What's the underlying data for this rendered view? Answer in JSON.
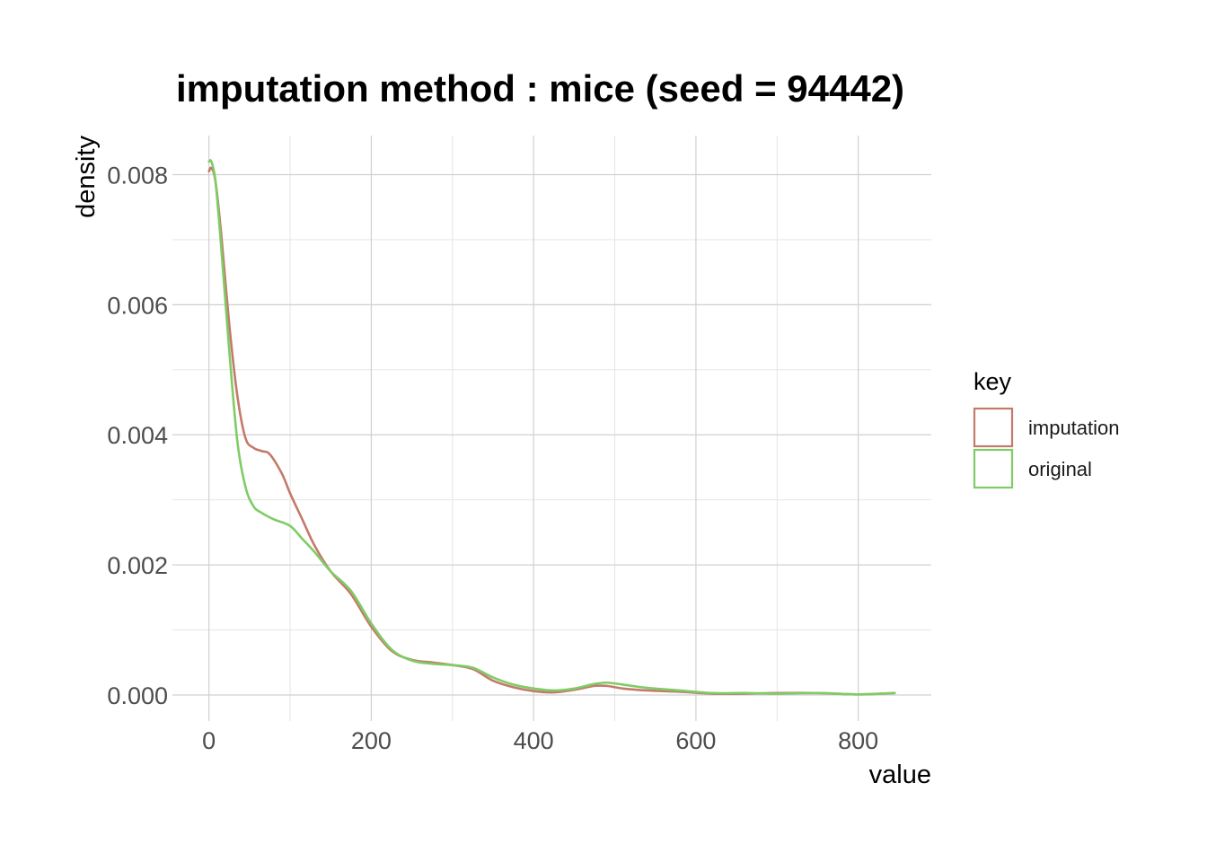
{
  "chart_data": {
    "type": "line",
    "title": "imputation method : mice (seed = 94442)",
    "xlabel": "value",
    "ylabel": "density",
    "xlim": [
      -45,
      890
    ],
    "ylim": [
      -0.0004,
      0.0086
    ],
    "x_ticks": [
      0,
      200,
      400,
      600,
      800
    ],
    "x_tick_labels": [
      "0",
      "200",
      "400",
      "600",
      "800"
    ],
    "y_ticks": [
      0,
      0.002,
      0.004,
      0.006,
      0.008
    ],
    "y_tick_labels": [
      "0.000",
      "0.002",
      "0.004",
      "0.006",
      "0.008"
    ],
    "grid": true,
    "legend": {
      "title": "key",
      "position": "right"
    },
    "series": [
      {
        "name": "imputation",
        "color": "#c47a6a",
        "x": [
          0,
          3,
          8,
          15,
          25,
          35,
          45,
          55,
          65,
          75,
          90,
          100,
          115,
          130,
          150,
          175,
          200,
          225,
          250,
          275,
          300,
          325,
          350,
          375,
          400,
          425,
          450,
          475,
          490,
          510,
          540,
          580,
          620,
          660,
          700,
          750,
          800,
          845
        ],
        "y": [
          0.00805,
          0.0081,
          0.0079,
          0.0071,
          0.0057,
          0.0046,
          0.00395,
          0.0038,
          0.00375,
          0.0037,
          0.0034,
          0.0031,
          0.0027,
          0.0023,
          0.0019,
          0.00155,
          0.00105,
          0.00068,
          0.00054,
          0.0005,
          0.00046,
          0.0004,
          0.00022,
          0.00012,
          6e-05,
          4e-05,
          8e-05,
          0.00014,
          0.00014,
          0.0001,
          7e-05,
          5e-05,
          2e-05,
          2e-05,
          3e-05,
          3e-05,
          1e-05,
          3e-05
        ]
      },
      {
        "name": "original",
        "color": "#7fcc66",
        "x": [
          0,
          3,
          8,
          15,
          25,
          35,
          45,
          55,
          65,
          80,
          100,
          115,
          130,
          150,
          175,
          200,
          225,
          250,
          275,
          300,
          325,
          350,
          375,
          400,
          425,
          450,
          475,
          490,
          510,
          540,
          580,
          620,
          660,
          700,
          750,
          800,
          845
        ],
        "y": [
          0.0082,
          0.0082,
          0.0079,
          0.0069,
          0.0053,
          0.0039,
          0.0032,
          0.0029,
          0.0028,
          0.0027,
          0.0026,
          0.0024,
          0.0022,
          0.0019,
          0.0016,
          0.0011,
          0.0007,
          0.00053,
          0.00048,
          0.00046,
          0.00042,
          0.00027,
          0.00016,
          0.0001,
          7e-05,
          0.0001,
          0.00017,
          0.00019,
          0.00016,
          0.00011,
          7e-05,
          3e-05,
          3e-05,
          2e-05,
          3e-05,
          1e-05,
          3e-05
        ]
      }
    ]
  }
}
